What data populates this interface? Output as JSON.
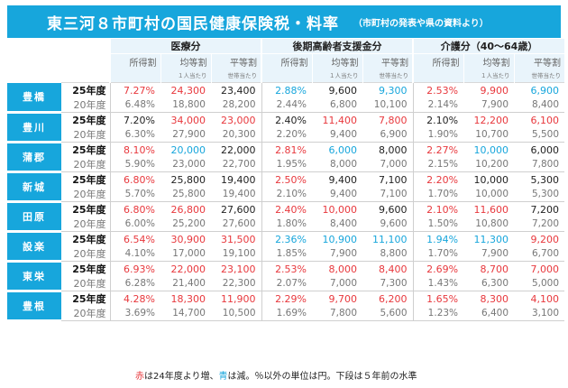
{
  "title": {
    "main": "東三河８市町村の国民健康保険税・料率",
    "sub": "（市町村の発表や県の資料より）"
  },
  "colors": {
    "header_bg": "#17a6dc",
    "increase": "#e8383d",
    "decrease": "#17a6dc",
    "neutral": "#222222",
    "prev": "#777777"
  },
  "groups": [
    "医療分",
    "後期高齢者支援金分",
    "介護分（40～64歳）"
  ],
  "subcolumns": [
    "所得割",
    "均等割",
    "平等割"
  ],
  "subnotes": [
    "",
    "１人当たり",
    "世帯当たり"
  ],
  "rows": [
    {
      "city": "豊橋",
      "cur": {
        "year": "25年度",
        "cells": [
          [
            "7.27%",
            "r"
          ],
          [
            "24,300",
            "r"
          ],
          [
            "23,400",
            "n"
          ],
          [
            "2.88%",
            "b"
          ],
          [
            "9,600",
            "n"
          ],
          [
            "9,300",
            "b"
          ],
          [
            "2.53%",
            "r"
          ],
          [
            "9,900",
            "r"
          ],
          [
            "6,900",
            "b"
          ]
        ]
      },
      "prev": {
        "year": "20年度",
        "cells": [
          "6.48%",
          "18,800",
          "28,200",
          "2.44%",
          "6,800",
          "10,100",
          "2.14%",
          "7,900",
          "8,400"
        ]
      }
    },
    {
      "city": "豊川",
      "cur": {
        "year": "25年度",
        "cells": [
          [
            "7.20%",
            "n"
          ],
          [
            "34,000",
            "r"
          ],
          [
            "23,000",
            "r"
          ],
          [
            "2.40%",
            "n"
          ],
          [
            "11,400",
            "r"
          ],
          [
            "7,800",
            "r"
          ],
          [
            "2.10%",
            "n"
          ],
          [
            "12,200",
            "r"
          ],
          [
            "6,100",
            "r"
          ]
        ]
      },
      "prev": {
        "year": "20年度",
        "cells": [
          "6.30%",
          "27,900",
          "20,300",
          "2.20%",
          "9,400",
          "6,900",
          "1.90%",
          "10,700",
          "5,500"
        ]
      }
    },
    {
      "city": "蒲郡",
      "cur": {
        "year": "25年度",
        "cells": [
          [
            "8.10%",
            "r"
          ],
          [
            "20,000",
            "b"
          ],
          [
            "22,000",
            "n"
          ],
          [
            "2.81%",
            "r"
          ],
          [
            "6,000",
            "b"
          ],
          [
            "8,000",
            "n"
          ],
          [
            "2.27%",
            "r"
          ],
          [
            "10,000",
            "b"
          ],
          [
            "6,000",
            "n"
          ]
        ]
      },
      "prev": {
        "year": "20年度",
        "cells": [
          "5.90%",
          "23,000",
          "22,700",
          "1.95%",
          "8,000",
          "7,000",
          "2.15%",
          "10,200",
          "7,800"
        ]
      }
    },
    {
      "city": "新城",
      "cur": {
        "year": "25年度",
        "cells": [
          [
            "6.80%",
            "r"
          ],
          [
            "25,800",
            "n"
          ],
          [
            "19,400",
            "n"
          ],
          [
            "2.50%",
            "r"
          ],
          [
            "9,400",
            "n"
          ],
          [
            "7,100",
            "n"
          ],
          [
            "2.20%",
            "r"
          ],
          [
            "10,000",
            "n"
          ],
          [
            "5,300",
            "n"
          ]
        ]
      },
      "prev": {
        "year": "20年度",
        "cells": [
          "5.70%",
          "25,800",
          "19,400",
          "2.10%",
          "9,400",
          "7,100",
          "1.70%",
          "10,000",
          "5,300"
        ]
      }
    },
    {
      "city": "田原",
      "cur": {
        "year": "25年度",
        "cells": [
          [
            "6.80%",
            "r"
          ],
          [
            "26,800",
            "r"
          ],
          [
            "27,600",
            "n"
          ],
          [
            "2.40%",
            "r"
          ],
          [
            "10,000",
            "r"
          ],
          [
            "9,600",
            "n"
          ],
          [
            "2.10%",
            "r"
          ],
          [
            "11,600",
            "r"
          ],
          [
            "7,200",
            "n"
          ]
        ]
      },
      "prev": {
        "year": "20年度",
        "cells": [
          "6.00%",
          "25,200",
          "27,600",
          "1.80%",
          "8,400",
          "9,600",
          "1.50%",
          "10,800",
          "7,200"
        ]
      }
    },
    {
      "city": "設楽",
      "cur": {
        "year": "25年度",
        "cells": [
          [
            "6.54%",
            "r"
          ],
          [
            "30,900",
            "r"
          ],
          [
            "31,500",
            "r"
          ],
          [
            "2.36%",
            "b"
          ],
          [
            "10,900",
            "b"
          ],
          [
            "11,100",
            "b"
          ],
          [
            "1.94%",
            "b"
          ],
          [
            "11,300",
            "b"
          ],
          [
            "9,200",
            "r"
          ]
        ]
      },
      "prev": {
        "year": "20年度",
        "cells": [
          "4.10%",
          "17,000",
          "19,100",
          "1.85%",
          "7,900",
          "8,800",
          "1.70%",
          "7,900",
          "6,700"
        ]
      }
    },
    {
      "city": "東栄",
      "cur": {
        "year": "25年度",
        "cells": [
          [
            "6.93%",
            "r"
          ],
          [
            "22,000",
            "r"
          ],
          [
            "23,100",
            "r"
          ],
          [
            "2.53%",
            "r"
          ],
          [
            "8,000",
            "r"
          ],
          [
            "8,400",
            "r"
          ],
          [
            "2.69%",
            "r"
          ],
          [
            "8,700",
            "r"
          ],
          [
            "7,000",
            "r"
          ]
        ]
      },
      "prev": {
        "year": "20年度",
        "cells": [
          "6.28%",
          "21,400",
          "22,300",
          "2.07%",
          "7,000",
          "7,300",
          "1.43%",
          "6,300",
          "5,000"
        ]
      }
    },
    {
      "city": "豊根",
      "cur": {
        "year": "25年度",
        "cells": [
          [
            "4.28%",
            "r"
          ],
          [
            "18,300",
            "r"
          ],
          [
            "11,900",
            "r"
          ],
          [
            "2.29%",
            "r"
          ],
          [
            "9,700",
            "r"
          ],
          [
            "6,200",
            "r"
          ],
          [
            "1.65%",
            "r"
          ],
          [
            "8,300",
            "r"
          ],
          [
            "4,100",
            "r"
          ]
        ]
      },
      "prev": {
        "year": "20年度",
        "cells": [
          "3.69%",
          "14,700",
          "10,500",
          "1.69%",
          "7,800",
          "5,600",
          "1.23%",
          "6,400",
          "3,100"
        ]
      }
    }
  ],
  "footnote": {
    "red_word": "赤",
    "mid1": "は24年度より増、",
    "blue_word": "青",
    "mid2": "は減。％以外の単位は円。下段は５年前の水準"
  }
}
